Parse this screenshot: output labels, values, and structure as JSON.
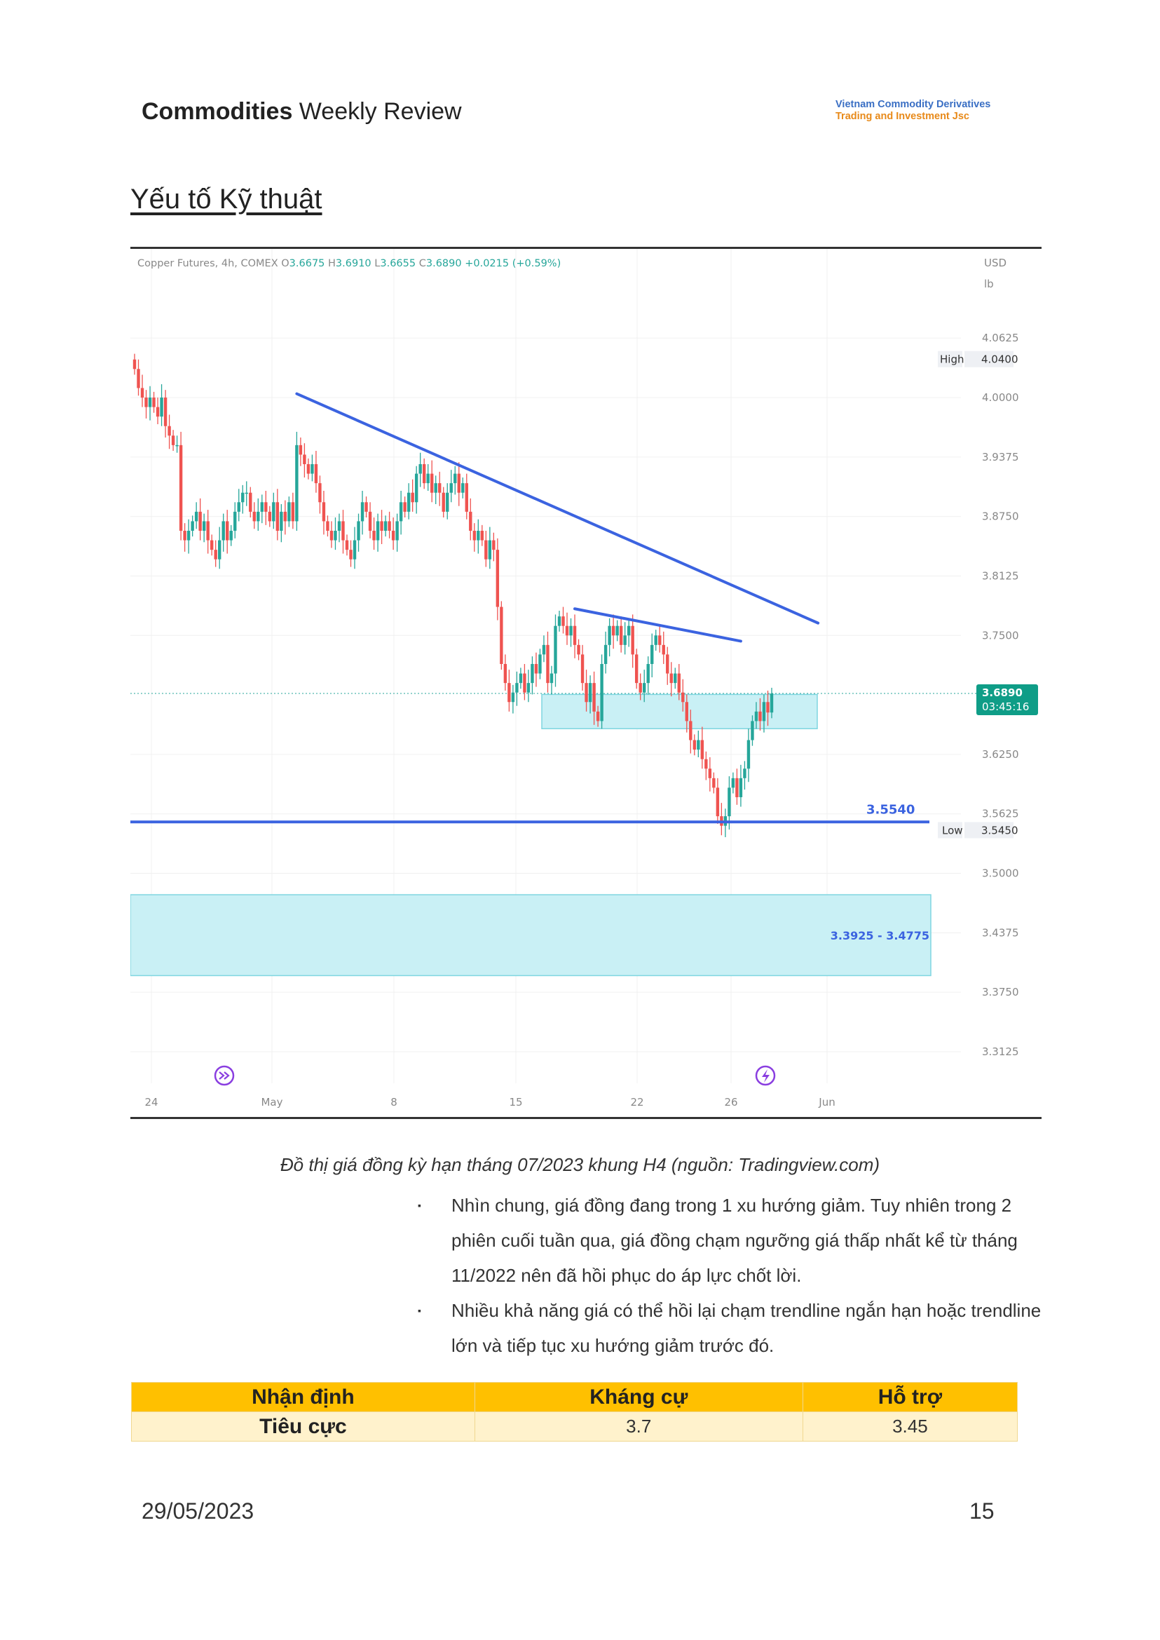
{
  "header": {
    "title_bold": "Commodities",
    "title_rest": " Weekly Review",
    "brand_line1": "Vietnam Commodity Derivatives",
    "brand_line2": "Trading and Investment Jsc"
  },
  "section_title": "Yếu tố Kỹ thuật",
  "chart_data": {
    "type": "candlestick",
    "legend": {
      "symbol": "Copper Futures, 4h, COMEX",
      "o_label": "O",
      "o": "3.6675",
      "h_label": "H",
      "h": "3.6910",
      "l_label": "L",
      "l": "3.6655",
      "c_label": "C",
      "c": "3.6890",
      "change": "+0.0215 (+0.59%)"
    },
    "currency": "USD",
    "unit": "lb",
    "y_ticks": [
      "4.0625",
      "4.0000",
      "3.9375",
      "3.8750",
      "3.8125",
      "3.7500",
      "3.6250",
      "3.5625",
      "3.5000",
      "3.4375",
      "3.3750",
      "3.3125"
    ],
    "ylim": [
      3.29,
      4.12
    ],
    "x_ticks": [
      "24",
      "May",
      "8",
      "15",
      "22",
      "26",
      "Jun"
    ],
    "high_label": "High",
    "high": "4.0400",
    "low_label": "Low",
    "low": "3.5450",
    "last_price": "3.6890",
    "countdown": "03:45:16",
    "support_line": {
      "label": "3.5540",
      "value": 3.554
    },
    "zone_label": "3.3925 - 3.4775",
    "zones": [
      {
        "from": 3.3925,
        "to": 3.4775,
        "color": "#c9f0f5"
      },
      {
        "from": 3.652,
        "to": 3.688,
        "color": "#c9f0f5"
      }
    ],
    "trendlines": [
      {
        "from": {
          "candle": 42,
          "price": 4.004
        },
        "to": {
          "candle": 177,
          "price": 3.763
        }
      },
      {
        "from": {
          "candle": 114,
          "price": 3.778
        },
        "to": {
          "candle": 157,
          "price": 3.744
        }
      }
    ],
    "up_color": "#26a69a",
    "down_color": "#ef5350",
    "closes": [
      4.03,
      4.01,
      4.0,
      3.99,
      4.0,
      3.99,
      3.98,
      4.0,
      3.97,
      3.96,
      3.95,
      3.95,
      3.86,
      3.85,
      3.86,
      3.87,
      3.88,
      3.86,
      3.87,
      3.85,
      3.84,
      3.83,
      3.85,
      3.87,
      3.85,
      3.86,
      3.88,
      3.89,
      3.9,
      3.9,
      3.88,
      3.87,
      3.88,
      3.89,
      3.88,
      3.87,
      3.89,
      3.86,
      3.88,
      3.87,
      3.89,
      3.87,
      3.95,
      3.94,
      3.93,
      3.92,
      3.93,
      3.91,
      3.89,
      3.87,
      3.86,
      3.85,
      3.86,
      3.87,
      3.85,
      3.84,
      3.83,
      3.85,
      3.87,
      3.89,
      3.88,
      3.86,
      3.85,
      3.87,
      3.86,
      3.87,
      3.86,
      3.85,
      3.87,
      3.89,
      3.88,
      3.9,
      3.89,
      3.92,
      3.93,
      3.91,
      3.92,
      3.9,
      3.91,
      3.9,
      3.88,
      3.9,
      3.91,
      3.92,
      3.9,
      3.91,
      3.88,
      3.86,
      3.85,
      3.86,
      3.85,
      3.83,
      3.85,
      3.84,
      3.78,
      3.72,
      3.7,
      3.68,
      3.69,
      3.7,
      3.71,
      3.69,
      3.7,
      3.72,
      3.71,
      3.73,
      3.74,
      3.7,
      3.71,
      3.76,
      3.77,
      3.76,
      3.75,
      3.76,
      3.74,
      3.73,
      3.7,
      3.68,
      3.7,
      3.67,
      3.66,
      3.72,
      3.74,
      3.76,
      3.75,
      3.76,
      3.74,
      3.75,
      3.76,
      3.73,
      3.7,
      3.69,
      3.7,
      3.72,
      3.74,
      3.75,
      3.74,
      3.73,
      3.71,
      3.7,
      3.71,
      3.69,
      3.68,
      3.66,
      3.64,
      3.63,
      3.64,
      3.62,
      3.61,
      3.6,
      3.59,
      3.56,
      3.55,
      3.56,
      3.59,
      3.6,
      3.58,
      3.6,
      3.61,
      3.64,
      3.66,
      3.67,
      3.66,
      3.68,
      3.669,
      3.689
    ]
  },
  "caption": "Đồ thị giá đồng kỳ hạn tháng 07/2023 khung H4 (nguồn: Tradingview.com)",
  "bullet_mark": "▪",
  "bullets": [
    "Nhìn chung, giá đồng đang trong 1 xu hướng giảm. Tuy nhiên trong 2 phiên cuối tuần qua, giá đồng chạm ngưỡng giá thấp nhất kể từ tháng 11/2022 nên đã hồi phục do áp lực chốt lời.",
    "Nhiều khả năng giá có thể hồi lại chạm trendline ngắn hạn hoặc trendline lớn và tiếp tục xu hướng giảm trước đó."
  ],
  "table": {
    "headers": [
      "Nhận định",
      "Kháng cự",
      "Hỗ trợ"
    ],
    "row": [
      "Tiêu cực",
      "3.7",
      "3.45"
    ]
  },
  "footer": {
    "date": "29/05/2023",
    "page": "15"
  }
}
